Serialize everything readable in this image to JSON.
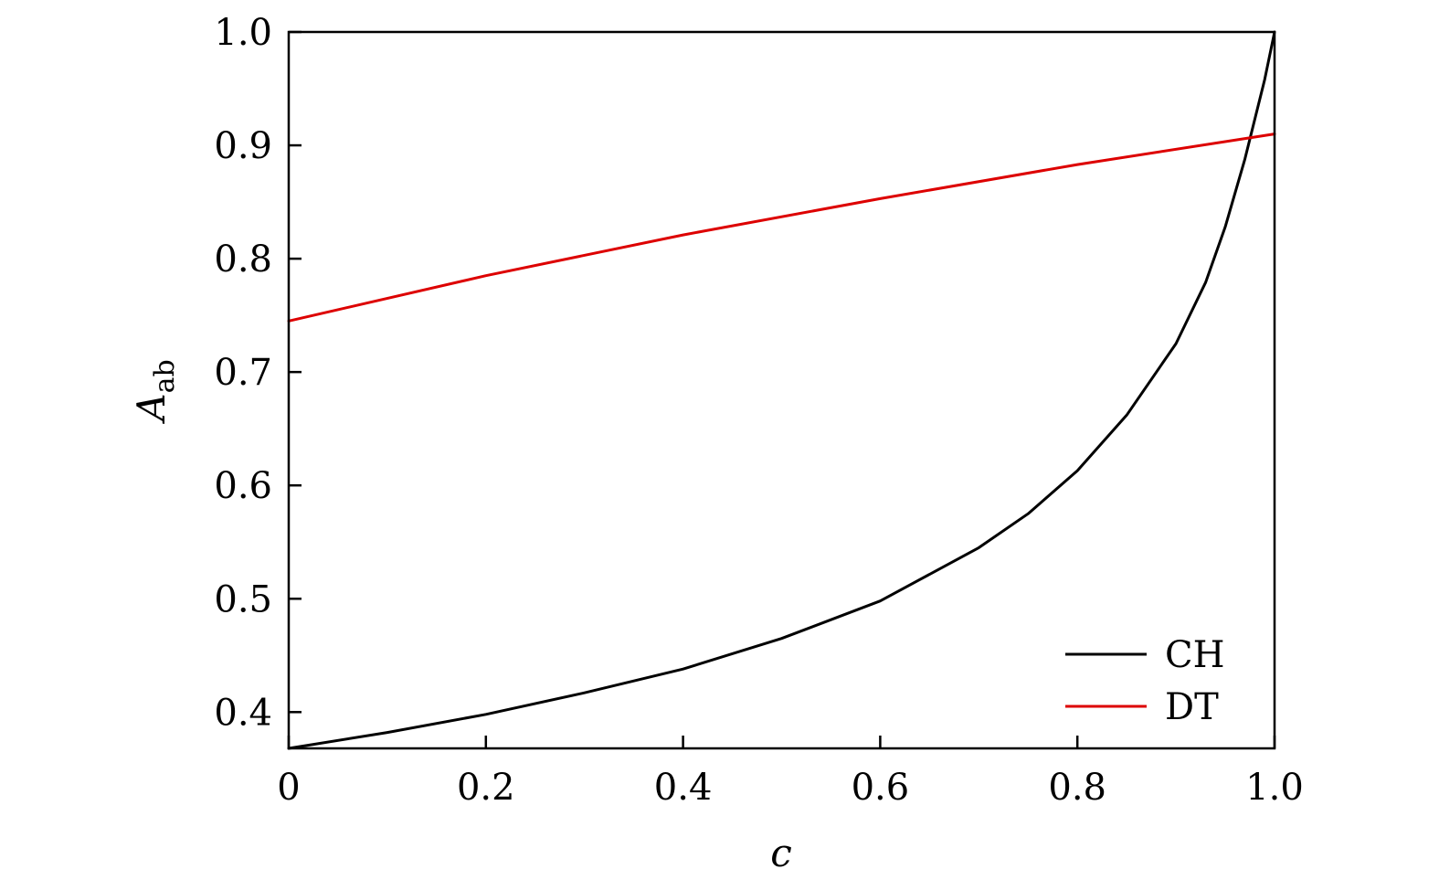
{
  "chart_data": {
    "type": "line",
    "title": "",
    "xlabel": "c",
    "ylabel": {
      "main": "A",
      "sub": "ab"
    },
    "xlim": [
      0,
      1.0
    ],
    "ylim": [
      0.368,
      1.0
    ],
    "xticks": [
      0,
      0.2,
      0.4,
      0.6,
      0.8,
      1.0
    ],
    "xtick_labels": [
      "0",
      "0.2",
      "0.4",
      "0.6",
      "0.8",
      "1.0"
    ],
    "yticks": [
      0.4,
      0.5,
      0.6,
      0.7,
      0.8,
      0.9,
      1.0
    ],
    "ytick_labels": [
      "0.4",
      "0.5",
      "0.6",
      "0.7",
      "0.8",
      "0.9",
      "1.0"
    ],
    "grid": false,
    "legend_position": "bottom-right",
    "series": [
      {
        "name": "CH",
        "color": "#000000",
        "x": [
          0,
          0.1,
          0.2,
          0.3,
          0.4,
          0.5,
          0.6,
          0.7,
          0.75,
          0.8,
          0.85,
          0.9,
          0.93,
          0.95,
          0.97,
          0.99,
          1.0
        ],
        "y": [
          0.368,
          0.382,
          0.398,
          0.417,
          0.438,
          0.465,
          0.498,
          0.545,
          0.575,
          0.613,
          0.662,
          0.725,
          0.779,
          0.828,
          0.888,
          0.958,
          1.0
        ]
      },
      {
        "name": "DT",
        "color": "#dd0000",
        "x": [
          0,
          0.2,
          0.4,
          0.6,
          0.8,
          1.0
        ],
        "y": [
          0.745,
          0.785,
          0.821,
          0.853,
          0.883,
          0.91
        ]
      }
    ]
  }
}
